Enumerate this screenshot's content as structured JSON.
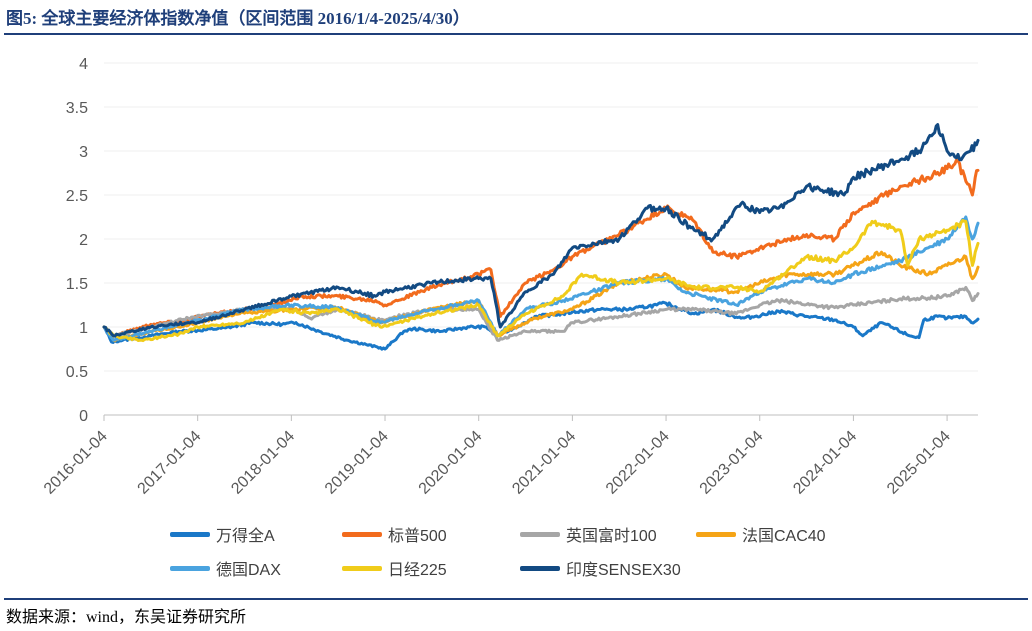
{
  "header": {
    "title": "图5:  全球主要经济体指数净值（区间范围 2016/1/4-2025/4/30）"
  },
  "footer": {
    "source": "数据来源：wind，东吴证券研究所"
  },
  "colors": {
    "万得全A": "#1a78c8",
    "标普500": "#f26b1d",
    "英国富时100": "#a6a6a6",
    "法国CAC40": "#f5a416",
    "德国DAX": "#4aa3df",
    "日经225": "#f0cc1a",
    "印度SENSEX30": "#124a82"
  },
  "chart_data": {
    "type": "line",
    "title": "全球主要经济体指数净值",
    "xlabel": "",
    "ylabel": "",
    "ylim": [
      0,
      4
    ],
    "yticks": [
      "0",
      "0.5",
      "1",
      "1.5",
      "2",
      "2.5",
      "3",
      "3.5",
      "4"
    ],
    "xlim": [
      2016.0,
      2025.33
    ],
    "xticks": [
      "2016-01-04",
      "2017-01-04",
      "2018-01-04",
      "2019-01-04",
      "2020-01-04",
      "2021-01-04",
      "2022-01-04",
      "2023-01-04",
      "2024-01-04",
      "2025-01-04"
    ],
    "legend_position": "bottom",
    "series": [
      {
        "name": "万得全A",
        "x": [
          2016.0,
          2016.08,
          2016.2,
          2016.5,
          2016.8,
          2017.0,
          2017.3,
          2017.6,
          2017.9,
          2018.05,
          2018.3,
          2018.6,
          2018.8,
          2019.0,
          2019.2,
          2019.3,
          2019.6,
          2019.9,
          2020.08,
          2020.2,
          2020.5,
          2020.6,
          2020.9,
          2021.0,
          2021.3,
          2021.6,
          2021.9,
          2022.0,
          2022.3,
          2022.5,
          2022.8,
          2022.95,
          2023.2,
          2023.5,
          2023.8,
          2024.0,
          2024.1,
          2024.3,
          2024.6,
          2024.7,
          2024.75,
          2024.9,
          2025.0,
          2025.2,
          2025.26,
          2025.33
        ],
        "values": [
          1.0,
          0.83,
          0.85,
          0.9,
          0.95,
          0.96,
          0.99,
          1.05,
          1.03,
          1.05,
          0.95,
          0.85,
          0.8,
          0.75,
          0.95,
          0.98,
          0.95,
          1.0,
          1.0,
          0.9,
          1.05,
          1.12,
          1.15,
          1.17,
          1.2,
          1.2,
          1.25,
          1.27,
          1.15,
          1.2,
          1.1,
          1.12,
          1.18,
          1.12,
          1.08,
          1.0,
          0.9,
          1.05,
          0.9,
          0.88,
          1.08,
          1.12,
          1.1,
          1.12,
          1.05,
          1.09
        ]
      },
      {
        "name": "标普500",
        "x": [
          2016.0,
          2016.1,
          2016.5,
          2016.9,
          2017.0,
          2017.5,
          2018.0,
          2018.1,
          2018.5,
          2018.9,
          2019.0,
          2019.5,
          2020.0,
          2020.13,
          2020.23,
          2020.5,
          2020.8,
          2021.0,
          2021.5,
          2022.0,
          2022.3,
          2022.5,
          2022.75,
          2023.0,
          2023.5,
          2023.8,
          2024.0,
          2024.5,
          2024.8,
          2025.0,
          2025.1,
          2025.27,
          2025.3,
          2025.33
        ],
        "values": [
          1.0,
          0.9,
          1.03,
          1.08,
          1.12,
          1.2,
          1.3,
          1.35,
          1.35,
          1.3,
          1.25,
          1.45,
          1.6,
          1.65,
          1.12,
          1.5,
          1.65,
          1.8,
          2.05,
          2.35,
          2.2,
          1.85,
          1.8,
          1.9,
          2.05,
          2.0,
          2.3,
          2.6,
          2.7,
          2.8,
          2.9,
          2.5,
          2.7,
          2.78
        ]
      },
      {
        "name": "英国富时100",
        "x": [
          2016.0,
          2016.1,
          2016.5,
          2016.9,
          2017.5,
          2018.0,
          2018.2,
          2018.5,
          2018.95,
          2019.5,
          2020.0,
          2020.2,
          2020.5,
          2020.9,
          2021.0,
          2021.5,
          2022.0,
          2022.3,
          2022.75,
          2023.0,
          2023.2,
          2023.8,
          2024.0,
          2024.5,
          2024.8,
          2025.0,
          2025.2,
          2025.27,
          2025.33
        ],
        "values": [
          1.0,
          0.9,
          1.0,
          1.1,
          1.2,
          1.22,
          1.1,
          1.2,
          1.08,
          1.2,
          1.2,
          0.85,
          0.95,
          0.95,
          1.05,
          1.12,
          1.2,
          1.2,
          1.15,
          1.25,
          1.3,
          1.22,
          1.25,
          1.32,
          1.33,
          1.35,
          1.45,
          1.3,
          1.38
        ]
      },
      {
        "name": "法国CAC40",
        "x": [
          2016.0,
          2016.1,
          2016.5,
          2016.8,
          2017.0,
          2017.4,
          2018.0,
          2018.5,
          2018.95,
          2019.5,
          2020.0,
          2020.2,
          2020.6,
          2021.0,
          2021.5,
          2022.0,
          2022.2,
          2022.75,
          2023.0,
          2023.3,
          2023.8,
          2024.0,
          2024.3,
          2024.5,
          2024.8,
          2025.0,
          2025.2,
          2025.27,
          2025.33
        ],
        "values": [
          1.0,
          0.85,
          0.95,
          1.0,
          1.05,
          1.15,
          1.2,
          1.22,
          1.05,
          1.2,
          1.3,
          0.9,
          1.1,
          1.2,
          1.5,
          1.6,
          1.45,
          1.4,
          1.5,
          1.6,
          1.6,
          1.7,
          1.85,
          1.7,
          1.6,
          1.7,
          1.8,
          1.55,
          1.68
        ]
      },
      {
        "name": "德国DAX",
        "x": [
          2016.0,
          2016.1,
          2016.5,
          2016.9,
          2017.5,
          2018.0,
          2018.5,
          2018.95,
          2019.5,
          2020.0,
          2020.2,
          2020.5,
          2020.9,
          2021.5,
          2022.0,
          2022.2,
          2022.75,
          2023.0,
          2023.5,
          2023.8,
          2024.0,
          2024.5,
          2024.8,
          2025.0,
          2025.2,
          2025.27,
          2025.33
        ],
        "values": [
          1.0,
          0.85,
          0.95,
          1.05,
          1.2,
          1.25,
          1.22,
          1.05,
          1.2,
          1.3,
          0.9,
          1.2,
          1.3,
          1.5,
          1.55,
          1.4,
          1.25,
          1.4,
          1.55,
          1.5,
          1.6,
          1.75,
          1.9,
          2.0,
          2.25,
          2.0,
          2.18
        ]
      },
      {
        "name": "日经225",
        "x": [
          2016.0,
          2016.1,
          2016.4,
          2016.8,
          2017.0,
          2017.5,
          2017.9,
          2018.2,
          2018.5,
          2018.95,
          2019.5,
          2020.0,
          2020.2,
          2020.5,
          2020.9,
          2021.1,
          2021.5,
          2022.0,
          2022.3,
          2022.75,
          2023.0,
          2023.5,
          2023.8,
          2024.0,
          2024.2,
          2024.5,
          2024.58,
          2024.7,
          2025.0,
          2025.2,
          2025.27,
          2025.33
        ],
        "values": [
          1.0,
          0.9,
          0.85,
          0.92,
          1.0,
          1.05,
          1.2,
          1.15,
          1.2,
          1.0,
          1.15,
          1.25,
          0.9,
          1.15,
          1.35,
          1.6,
          1.5,
          1.55,
          1.45,
          1.45,
          1.4,
          1.8,
          1.75,
          1.9,
          2.2,
          2.1,
          1.7,
          2.0,
          2.1,
          2.2,
          1.7,
          1.95
        ]
      },
      {
        "name": "印度SENSEX30",
        "x": [
          2016.0,
          2016.1,
          2016.5,
          2016.9,
          2017.0,
          2017.5,
          2018.0,
          2018.5,
          2018.9,
          2019.0,
          2019.5,
          2019.95,
          2020.13,
          2020.23,
          2020.5,
          2020.8,
          2021.0,
          2021.5,
          2021.8,
          2022.0,
          2022.3,
          2022.5,
          2022.8,
          2023.0,
          2023.2,
          2023.5,
          2023.9,
          2024.0,
          2024.5,
          2024.7,
          2024.9,
          2025.0,
          2025.15,
          2025.25,
          2025.33
        ],
        "values": [
          1.0,
          0.9,
          1.0,
          1.05,
          1.05,
          1.2,
          1.35,
          1.45,
          1.35,
          1.4,
          1.5,
          1.55,
          1.55,
          1.0,
          1.4,
          1.6,
          1.9,
          2.0,
          2.35,
          2.35,
          2.1,
          2.0,
          2.4,
          2.3,
          2.35,
          2.6,
          2.5,
          2.7,
          2.9,
          3.0,
          3.3,
          3.0,
          2.9,
          3.0,
          3.12
        ]
      }
    ]
  }
}
